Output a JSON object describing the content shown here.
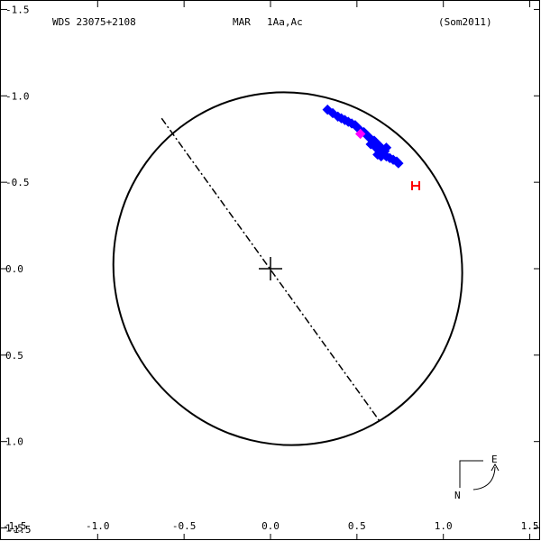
{
  "header": {
    "wds_id": "WDS 23075+2108",
    "observer_code": "MAR",
    "components": "1Aa,Ac",
    "reference": "(Som2011)"
  },
  "compass": {
    "east_label": "E",
    "north_label": "N"
  },
  "chart_data": {
    "type": "scatter",
    "title": "",
    "xlabel": "",
    "ylabel": "",
    "xlim": [
      -1.5,
      1.5
    ],
    "ylim": [
      -1.5,
      1.5
    ],
    "y_inverted": true,
    "x_ticks": [
      -1.0,
      -0.5,
      0.0,
      0.5,
      1.0,
      1.5
    ],
    "x_tick_labels": [
      "-1.0",
      "-0.5",
      "0.0",
      "0.5",
      "1.0",
      "1.5"
    ],
    "y_ticks": [
      -1.5,
      -1.0,
      -0.5,
      0.0,
      0.5,
      1.0,
      1.5
    ],
    "y_tick_labels": [
      "1.5",
      "1.0",
      "0.5",
      "0.0",
      "-0.5",
      "-1.0",
      "-1.5"
    ],
    "corner_labels": [
      "-1.5",
      "-1.5"
    ],
    "grid": false,
    "orbit_ellipse": {
      "center": [
        0.1,
        0.0
      ],
      "semi_axis_a": 0.99,
      "semi_axis_b": 1.0,
      "rotation_deg": 0,
      "color": "#000000"
    },
    "line_of_nodes": {
      "from": [
        -0.63,
        0.87
      ],
      "to": [
        0.63,
        -0.88
      ],
      "style": "dash-dot",
      "color": "#000000"
    },
    "primary_marker": {
      "x": 0.0,
      "y": 0.0,
      "symbol": "plus"
    },
    "series": [
      {
        "name": "",
        "color": "#0000ff",
        "marker": "diamond",
        "points": [
          [
            0.33,
            0.92
          ],
          [
            0.36,
            0.9
          ],
          [
            0.39,
            0.88
          ],
          [
            0.41,
            0.87
          ],
          [
            0.43,
            0.86
          ],
          [
            0.45,
            0.85
          ],
          [
            0.47,
            0.84
          ],
          [
            0.49,
            0.83
          ],
          [
            0.5,
            0.82
          ],
          [
            0.52,
            0.8
          ],
          [
            0.54,
            0.79
          ],
          [
            0.55,
            0.78
          ],
          [
            0.56,
            0.77
          ],
          [
            0.57,
            0.76
          ],
          [
            0.58,
            0.75
          ],
          [
            0.6,
            0.74
          ],
          [
            0.61,
            0.73
          ],
          [
            0.62,
            0.72
          ],
          [
            0.63,
            0.71
          ],
          [
            0.64,
            0.7
          ],
          [
            0.65,
            0.69
          ],
          [
            0.66,
            0.68
          ],
          [
            0.62,
            0.66
          ],
          [
            0.64,
            0.65
          ],
          [
            0.67,
            0.65
          ],
          [
            0.69,
            0.64
          ],
          [
            0.71,
            0.63
          ],
          [
            0.73,
            0.62
          ],
          [
            0.74,
            0.61
          ],
          [
            0.59,
            0.74
          ],
          [
            0.61,
            0.7
          ],
          [
            0.63,
            0.68
          ],
          [
            0.66,
            0.66
          ],
          [
            0.58,
            0.72
          ],
          [
            0.67,
            0.7
          ]
        ]
      },
      {
        "name": "",
        "color": "#ff00ff",
        "marker": "diamond",
        "points": [
          [
            0.52,
            0.78
          ]
        ]
      },
      {
        "name": "",
        "color": "#ff0000",
        "marker": "bracket",
        "points": [
          [
            0.84,
            0.48
          ]
        ]
      }
    ]
  }
}
